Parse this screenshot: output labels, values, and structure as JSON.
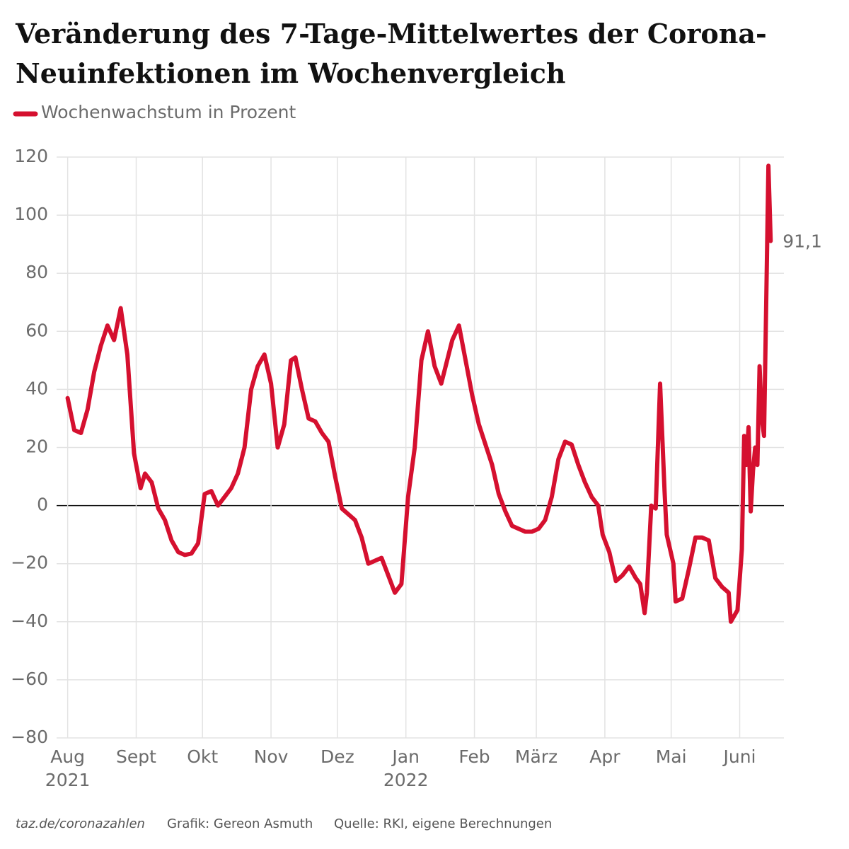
{
  "chart_data": {
    "type": "line",
    "title": "Veränderung des 7-Tage-Mittelwertes der Corona-Neuinfektionen im Wochenvergleich",
    "x": [
      "2021-08-01",
      "2021-08-04",
      "2021-08-07",
      "2021-08-10",
      "2021-08-13",
      "2021-08-16",
      "2021-08-19",
      "2021-08-22",
      "2021-08-25",
      "2021-08-28",
      "2021-08-31",
      "2021-09-03",
      "2021-09-05",
      "2021-09-08",
      "2021-09-11",
      "2021-09-14",
      "2021-09-17",
      "2021-09-20",
      "2021-09-23",
      "2021-09-26",
      "2021-09-29",
      "2021-10-02",
      "2021-10-05",
      "2021-10-08",
      "2021-10-11",
      "2021-10-14",
      "2021-10-17",
      "2021-10-20",
      "2021-10-23",
      "2021-10-26",
      "2021-10-29",
      "2021-11-01",
      "2021-11-04",
      "2021-11-07",
      "2021-11-10",
      "2021-11-12",
      "2021-11-15",
      "2021-11-18",
      "2021-11-21",
      "2021-11-24",
      "2021-11-27",
      "2021-11-30",
      "2021-12-03",
      "2021-12-06",
      "2021-12-09",
      "2021-12-12",
      "2021-12-15",
      "2021-12-18",
      "2021-12-21",
      "2021-12-24",
      "2021-12-27",
      "2021-12-30",
      "2022-01-02",
      "2022-01-05",
      "2022-01-08",
      "2022-01-11",
      "2022-01-14",
      "2022-01-17",
      "2022-01-19",
      "2022-01-22",
      "2022-01-25",
      "2022-01-28",
      "2022-01-31",
      "2022-02-03",
      "2022-02-06",
      "2022-02-09",
      "2022-02-12",
      "2022-02-15",
      "2022-02-18",
      "2022-02-21",
      "2022-02-24",
      "2022-02-27",
      "2022-03-02",
      "2022-03-05",
      "2022-03-08",
      "2022-03-11",
      "2022-03-14",
      "2022-03-17",
      "2022-03-20",
      "2022-03-23",
      "2022-03-26",
      "2022-03-29",
      "2022-03-31",
      "2022-04-03",
      "2022-04-06",
      "2022-04-09",
      "2022-04-12",
      "2022-04-15",
      "2022-04-17",
      "2022-04-19",
      "2022-04-20",
      "2022-04-22",
      "2022-04-24",
      "2022-04-26",
      "2022-04-28",
      "2022-04-29",
      "2022-05-02",
      "2022-05-03",
      "2022-05-06",
      "2022-05-09",
      "2022-05-12",
      "2022-05-15",
      "2022-05-18",
      "2022-05-21",
      "2022-05-24",
      "2022-05-27",
      "2022-05-28",
      "2022-05-31",
      "2022-06-02",
      "2022-06-03",
      "2022-06-04",
      "2022-06-05",
      "2022-06-06",
      "2022-06-07",
      "2022-06-08",
      "2022-06-09",
      "2022-06-10",
      "2022-06-11",
      "2022-06-12",
      "2022-06-13",
      "2022-06-14",
      "2022-06-15"
    ],
    "series": [
      {
        "name": "Wochenwachstum in Prozent",
        "color": "#d5102f",
        "values": [
          37,
          26,
          25,
          33,
          46,
          55,
          62,
          57,
          68,
          52,
          18,
          6,
          11,
          8,
          -1,
          -5,
          -12,
          -16,
          -17,
          -16.5,
          -13,
          4,
          5,
          0,
          3,
          6,
          11,
          20,
          40,
          48,
          52,
          42,
          20,
          28,
          50,
          51,
          40,
          30,
          29,
          25,
          22,
          10,
          -1,
          -3,
          -5,
          -11,
          -20,
          -19,
          -18,
          -24,
          -30,
          -27,
          3,
          20,
          50,
          60,
          48,
          42,
          48,
          57,
          62,
          50,
          38,
          28,
          21,
          14,
          4,
          -2,
          -7,
          -8,
          -9,
          -9,
          -8,
          -5,
          3,
          16,
          22,
          21,
          14,
          8,
          3,
          0,
          -10,
          -16,
          -26,
          -24,
          -21,
          -25,
          -27,
          -37,
          -30,
          0,
          -1,
          42,
          5,
          -10,
          -20,
          -33,
          -32,
          -22,
          -11,
          -11,
          -12,
          -25,
          -28,
          -30,
          -40,
          -36,
          -15,
          24,
          14,
          27,
          -2,
          12,
          20,
          14,
          48,
          30,
          24,
          70,
          117,
          91.1
        ],
        "value_labels": [
          null,
          null,
          null,
          null,
          null,
          null,
          null,
          null,
          null,
          null,
          null,
          null,
          null,
          null,
          null,
          null,
          null,
          null,
          null,
          null,
          null,
          null,
          null,
          null,
          null,
          null,
          null,
          null,
          null,
          null,
          null,
          null,
          null,
          null,
          null,
          null,
          null,
          null,
          null,
          null,
          null,
          null,
          null,
          null,
          null,
          null,
          null,
          null,
          null,
          null,
          null,
          null,
          null,
          null,
          null,
          null,
          null,
          null,
          null,
          null,
          null,
          null,
          null,
          null,
          null,
          null,
          null,
          null,
          null,
          null,
          null,
          null,
          null,
          null,
          null,
          null,
          null,
          null,
          null,
          null,
          null,
          null,
          null,
          null,
          null,
          null,
          null,
          null,
          null,
          null,
          null,
          null,
          null,
          null,
          null,
          null,
          null,
          null,
          null,
          null,
          null,
          null,
          null,
          null,
          null,
          null,
          null,
          null,
          null,
          null,
          null,
          null,
          null,
          null,
          null,
          null,
          null,
          null,
          null,
          null,
          null,
          "91,1"
        ]
      }
    ],
    "xlim": [
      "2021-07-27",
      "2022-06-21"
    ],
    "xticks": [
      {
        "value": "2021-08-01",
        "label": "Aug"
      },
      {
        "value": "2021-09-01",
        "label": "Sept"
      },
      {
        "value": "2021-10-01",
        "label": "Okt"
      },
      {
        "value": "2021-11-01",
        "label": "Nov"
      },
      {
        "value": "2021-12-01",
        "label": "Dez"
      },
      {
        "value": "2022-01-01",
        "label": "Jan"
      },
      {
        "value": "2022-02-01",
        "label": "Feb"
      },
      {
        "value": "2022-03-01",
        "label": "März"
      },
      {
        "value": "2022-04-01",
        "label": "Apr"
      },
      {
        "value": "2022-05-01",
        "label": "Mai"
      },
      {
        "value": "2022-06-01",
        "label": "Juni"
      }
    ],
    "x_year_labels": [
      {
        "value": "2021-08-01",
        "label": "2021"
      },
      {
        "value": "2022-01-01",
        "label": "2022"
      }
    ],
    "ylim": [
      -80,
      120
    ],
    "yticks": [
      {
        "value": -80,
        "label": "−80"
      },
      {
        "value": -60,
        "label": "−60"
      },
      {
        "value": -40,
        "label": "−40"
      },
      {
        "value": -20,
        "label": "−20"
      },
      0,
      20,
      40,
      60,
      80,
      100,
      120
    ],
    "grid": true,
    "footer": [
      "taz.de/coronazahlen",
      "Grafik: Gereon Asmuth",
      "Quelle: RKI, eigene Berechnungen"
    ]
  }
}
